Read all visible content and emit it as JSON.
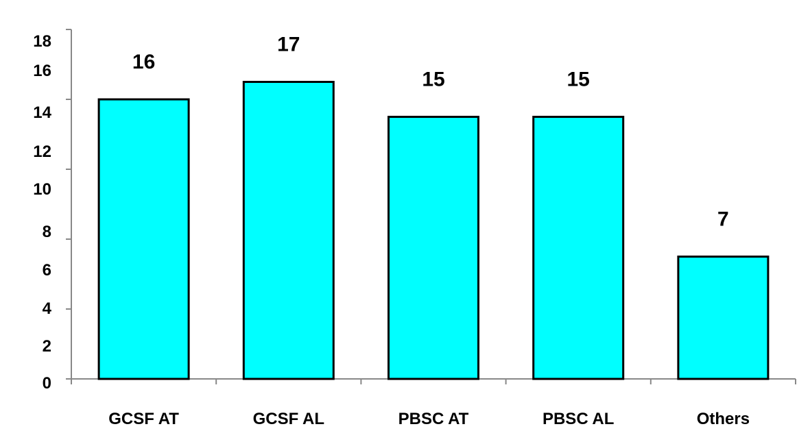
{
  "chart_data": {
    "type": "bar",
    "title": "",
    "xlabel": "",
    "ylabel": "",
    "categories": [
      "GCSF AT",
      "GCSF AL",
      "PBSC AT",
      "PBSC AL",
      "Others"
    ],
    "values": [
      16,
      17,
      15,
      15,
      7
    ],
    "data_labels": [
      "16",
      "17",
      "15",
      "15",
      "7"
    ],
    "ylim": [
      0,
      20
    ],
    "y_tick_labels": [
      "0",
      "2",
      "4",
      "6",
      "8",
      "10",
      "12",
      "14",
      "16",
      "18"
    ],
    "grid": false,
    "legend": "none",
    "colors": {
      "bar_fill": "#00FFFF",
      "bar_stroke": "#000000",
      "axis": "#888888",
      "text": "#000000"
    }
  }
}
